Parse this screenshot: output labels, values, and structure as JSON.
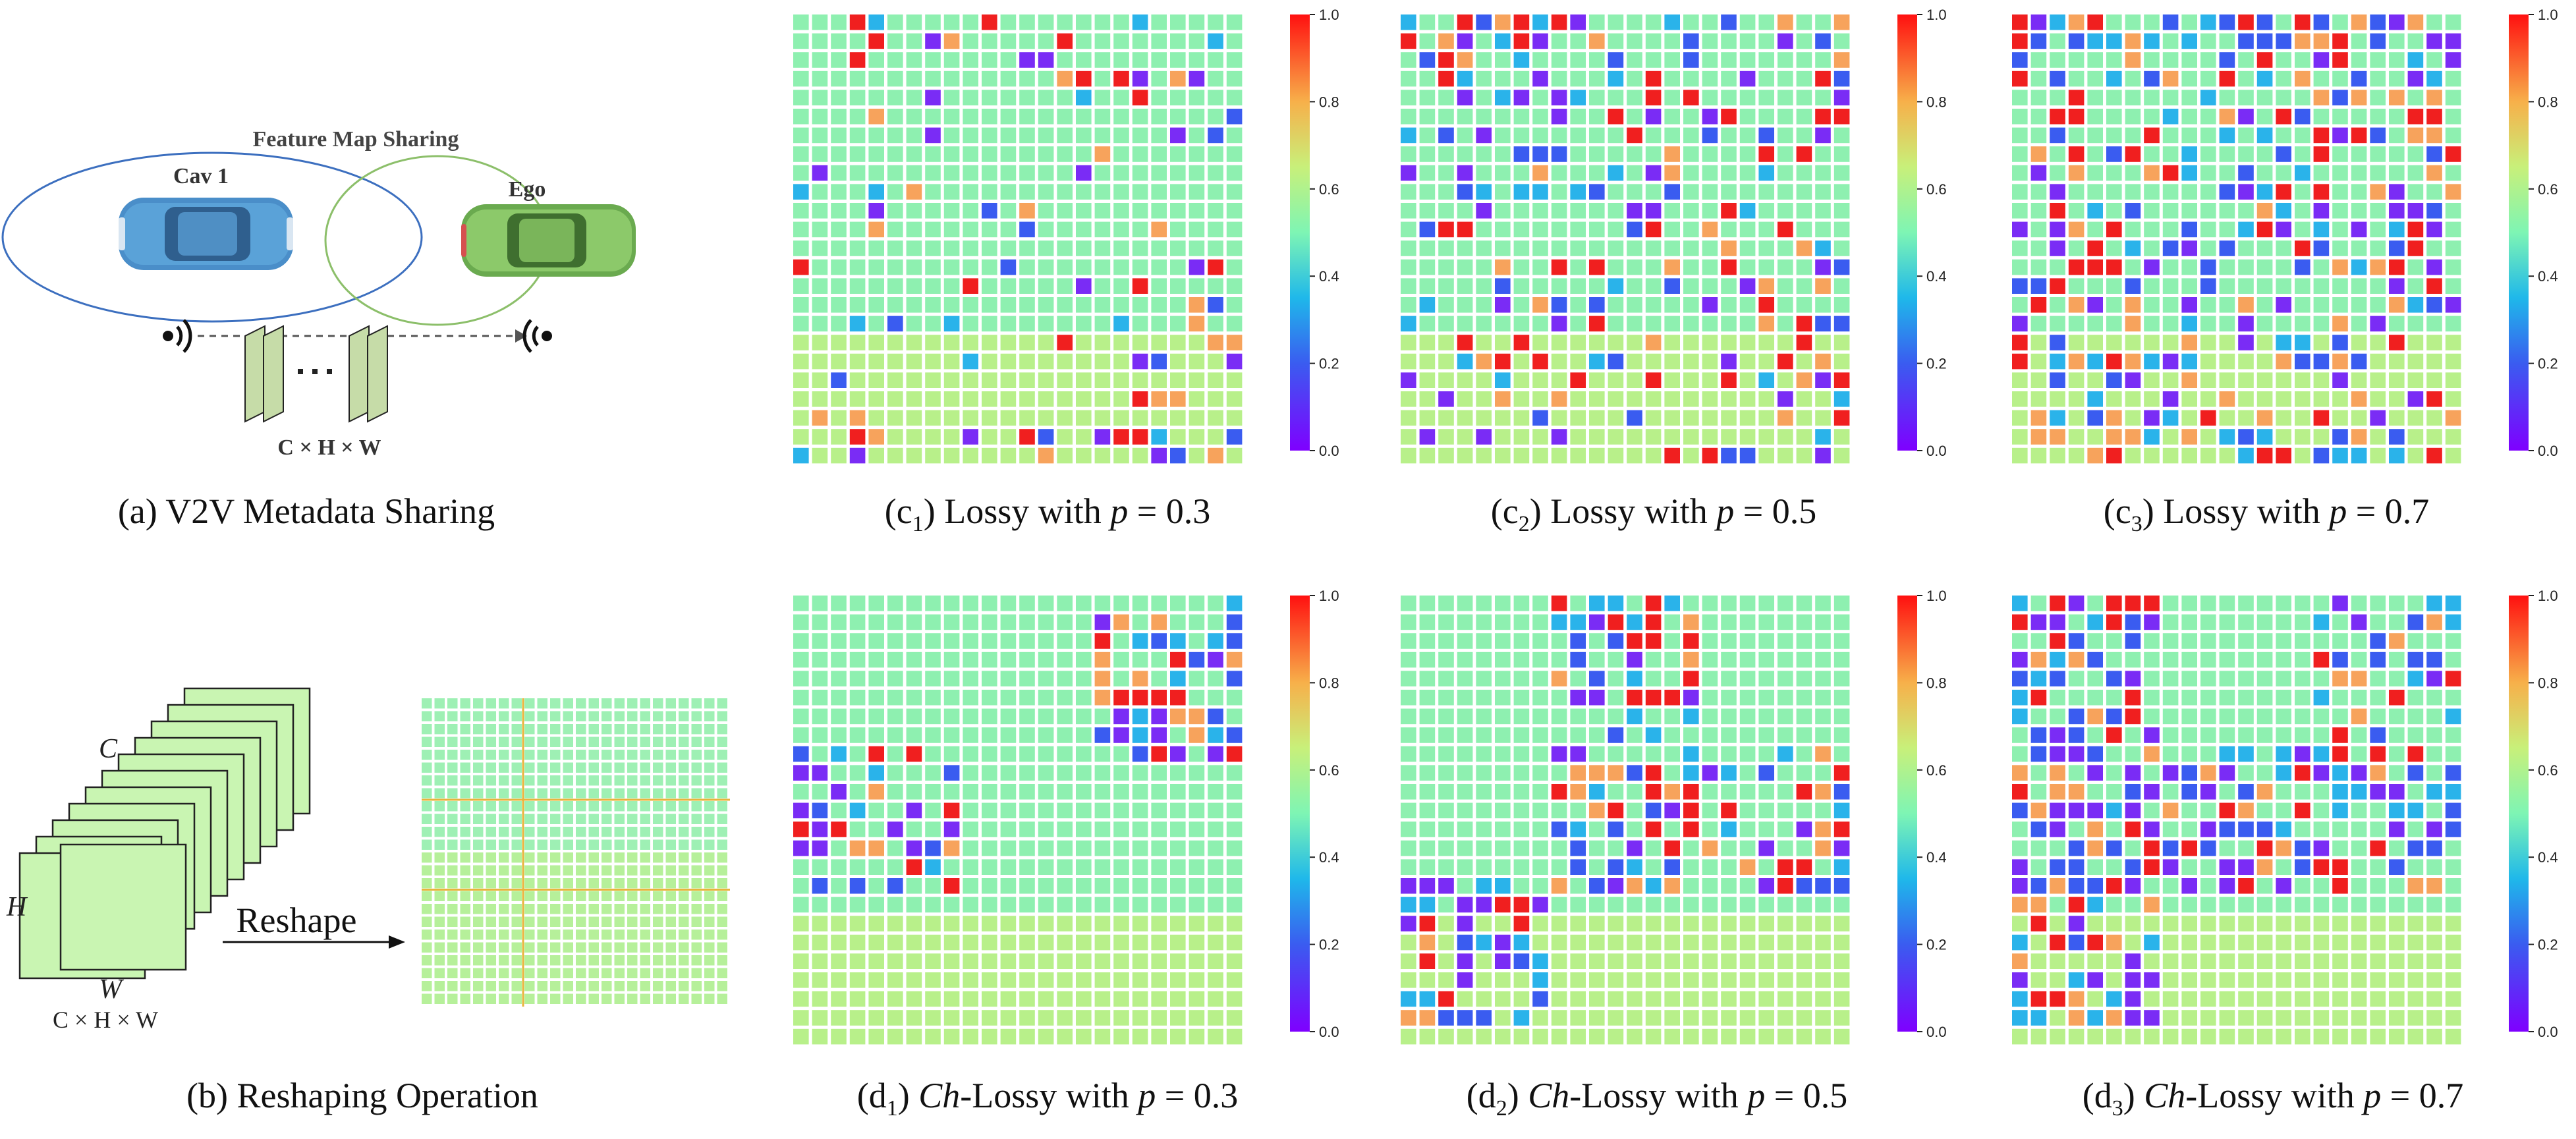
{
  "figure": {
    "panel_a": {
      "title": "Feature Map Sharing",
      "cav_label": "Cav 1",
      "ego_label": "Ego",
      "dims_label": "C × H × W",
      "caption": "(a) V2V Metadata Sharing"
    },
    "panel_b": {
      "c_label": "C",
      "h_label": "H",
      "w_label": "W",
      "dims_label": "C × H × W",
      "reshape_label": "Reshape",
      "caption": "(b) Reshaping Operation"
    },
    "heatmaps": [
      {
        "id": "c1",
        "prefix": "(c",
        "sub": "1",
        "mode": "Lossy",
        "p": "0.3",
        "caption_tail": "Lossy with",
        "seed": 11
      },
      {
        "id": "c2",
        "prefix": "(c",
        "sub": "2",
        "mode": "Lossy",
        "p": "0.5",
        "caption_tail": "Lossy with",
        "seed": 23
      },
      {
        "id": "c3",
        "prefix": "(c",
        "sub": "3",
        "mode": "Lossy",
        "p": "0.7",
        "caption_tail": "Lossy with",
        "seed": 37
      },
      {
        "id": "d1",
        "prefix": "(d",
        "sub": "1",
        "mode": "Ch",
        "p": "0.3",
        "caption_tail": "-Lossy with",
        "seed": 41
      },
      {
        "id": "d2",
        "prefix": "(d",
        "sub": "2",
        "mode": "Ch",
        "p": "0.5",
        "caption_tail": "-Lossy with",
        "seed": 53
      },
      {
        "id": "d3",
        "prefix": "(d",
        "sub": "3",
        "mode": "Ch",
        "p": "0.7",
        "caption_tail": "-Lossy with",
        "seed": 67
      }
    ],
    "colorbar": {
      "ticks": [
        "0.0",
        "0.2",
        "0.4",
        "0.6",
        "0.8",
        "1.0"
      ],
      "colormap": "rainbow"
    },
    "p_symbol": "p",
    "ch_symbol": "Ch",
    "colors": {
      "cav_ellipse": "#3c6fbf",
      "ego_ellipse": "#8cbf6a",
      "feature_map_fill": "#c6dca8",
      "reshape_grid_cell": "#9ef0a6",
      "reshape_grid_line": "#e8b43c",
      "base_cell": "#8ef0b0",
      "base_cell_lower": "#b8f08a"
    }
  }
}
